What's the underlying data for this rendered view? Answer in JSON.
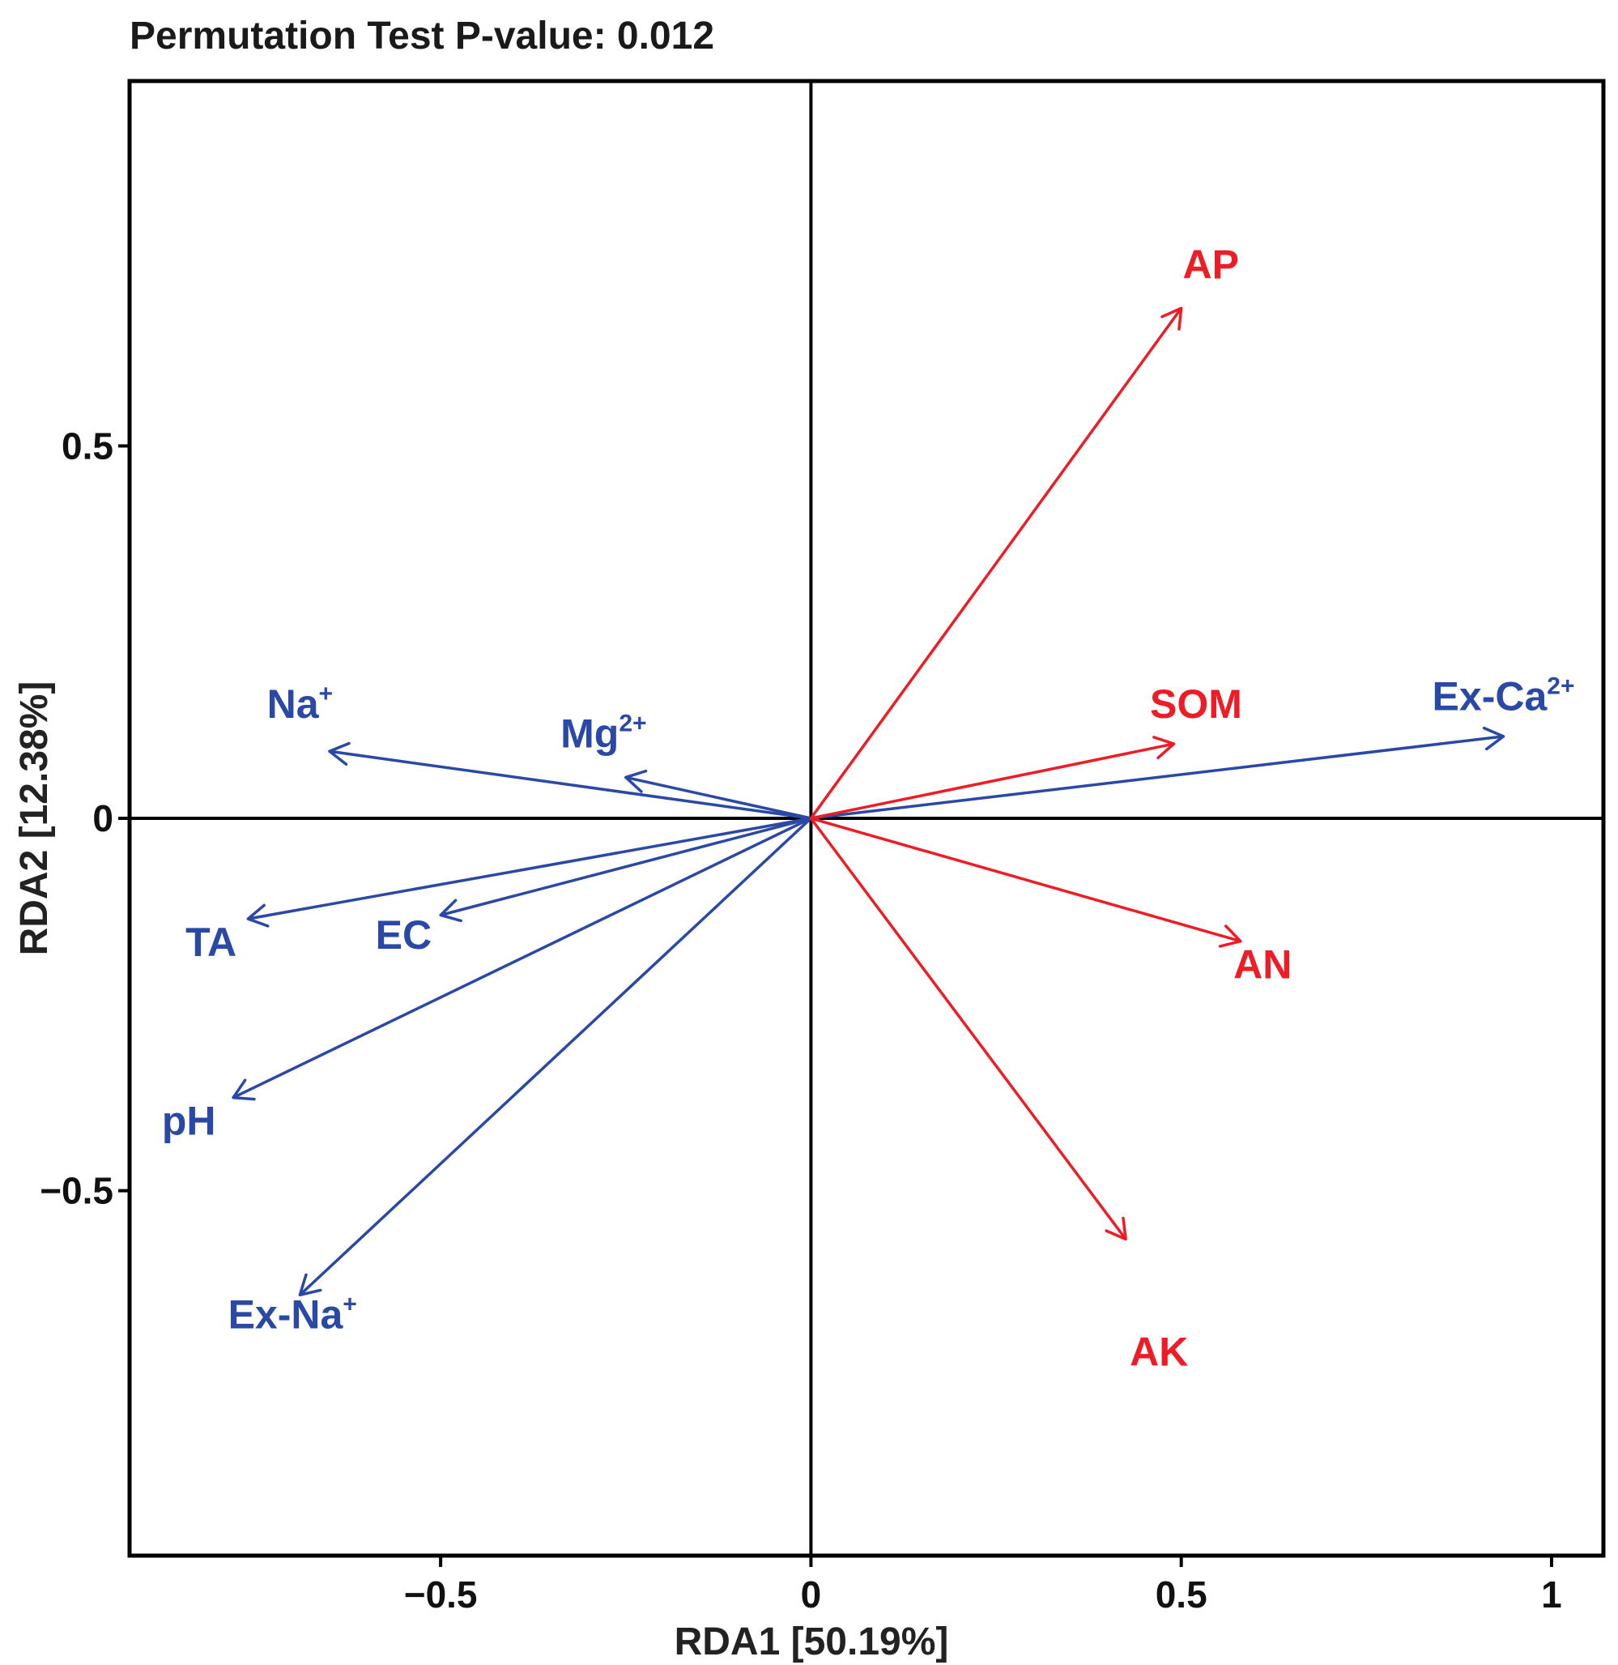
{
  "chart_data": {
    "type": "biplot",
    "title": "Permutation Test P-value: 0.012",
    "xlabel": "RDA1 [50.19%]",
    "ylabel": "RDA2 [12.38%]",
    "xlim": [
      -0.92,
      1.07
    ],
    "ylim": [
      -0.99,
      0.99
    ],
    "xticks": [
      {
        "value": -0.5,
        "label": "−0.5"
      },
      {
        "value": 0,
        "label": "0"
      },
      {
        "value": 0.5,
        "label": "0.5"
      },
      {
        "value": 1,
        "label": "1"
      }
    ],
    "yticks": [
      {
        "value": 0.5,
        "label": "0.5"
      },
      {
        "value": 0,
        "label": "0"
      },
      {
        "value": -0.5,
        "label": "−0.5"
      }
    ],
    "colors": {
      "blue_group": "#2a48a5",
      "red_group": "#ee1c25",
      "axis": "#000000"
    },
    "series": [
      {
        "name": "blue_group",
        "vectors": [
          {
            "id": "na",
            "label": "Na",
            "sup": "+",
            "x": -0.65,
            "y": 0.09,
            "label_x": -0.69,
            "label_y": 0.135
          },
          {
            "id": "mg",
            "label": "Mg",
            "sup": "2+",
            "x": -0.25,
            "y": 0.055,
            "label_x": -0.28,
            "label_y": 0.095
          },
          {
            "id": "ta",
            "label": "TA",
            "sup": "",
            "x": -0.76,
            "y": -0.135,
            "label_x": -0.81,
            "label_y": -0.185
          },
          {
            "id": "ec",
            "label": "EC",
            "sup": "",
            "x": -0.5,
            "y": -0.13,
            "label_x": -0.55,
            "label_y": -0.175
          },
          {
            "id": "ph",
            "label": "pH",
            "sup": "",
            "x": -0.78,
            "y": -0.375,
            "label_x": -0.84,
            "label_y": -0.425
          },
          {
            "id": "exna",
            "label": "Ex-Na",
            "sup": "+",
            "x": -0.69,
            "y": -0.64,
            "label_x": -0.7,
            "label_y": -0.685
          },
          {
            "id": "exca",
            "label": "Ex-Ca",
            "sup": "2+",
            "x": 0.935,
            "y": 0.11,
            "label_x": 0.935,
            "label_y": 0.145
          }
        ]
      },
      {
        "name": "red_group",
        "vectors": [
          {
            "id": "ap",
            "label": "AP",
            "sup": "",
            "x": 0.5,
            "y": 0.685,
            "label_x": 0.54,
            "label_y": 0.725
          },
          {
            "id": "som",
            "label": "SOM",
            "sup": "",
            "x": 0.49,
            "y": 0.1,
            "label_x": 0.52,
            "label_y": 0.135
          },
          {
            "id": "an",
            "label": "AN",
            "sup": "",
            "x": 0.58,
            "y": -0.165,
            "label_x": 0.61,
            "label_y": -0.215
          },
          {
            "id": "ak",
            "label": "AK",
            "sup": "",
            "x": 0.425,
            "y": -0.565,
            "label_x": 0.47,
            "label_y": -0.735
          }
        ]
      }
    ]
  }
}
